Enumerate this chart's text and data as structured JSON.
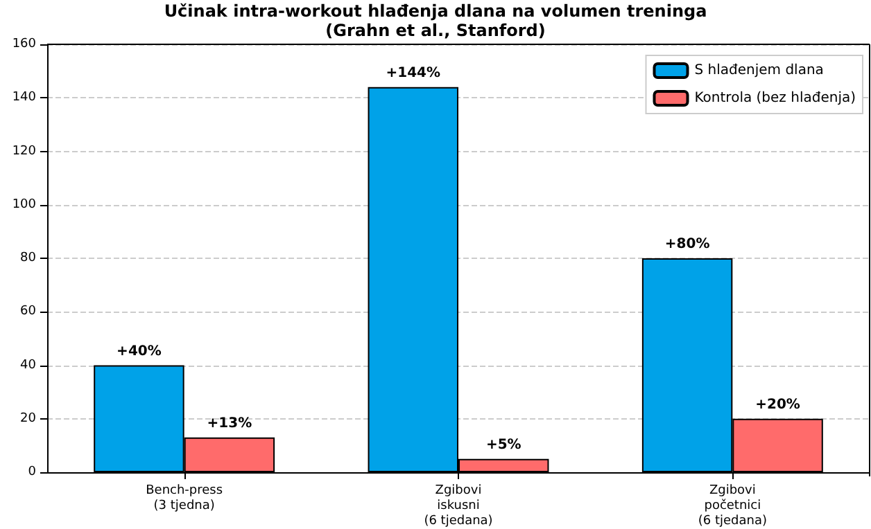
{
  "chart_data": {
    "type": "bar",
    "title": "Učinak intra-workout hlađenja dlana na volumen treninga\n(Grahn et al., Stanford)",
    "categories": [
      "Bench-press\n(3 tjedna)",
      "Zgibovi\niskusni\n(6 tjedana)",
      "Zgibovi\npočetnici\n(6 tjedana)"
    ],
    "series": [
      {
        "name": "S hlađenjem dlana",
        "color": "#00a2e8",
        "values": [
          40,
          144,
          80
        ],
        "value_labels": [
          "+40%",
          "+144%",
          "+80%"
        ]
      },
      {
        "name": "Kontrola (bez hlađenja)",
        "color": "#ff6b6b",
        "values": [
          13,
          5,
          20
        ],
        "value_labels": [
          "+13%",
          "+5%",
          "+20%"
        ]
      }
    ],
    "ylim": [
      0,
      160
    ],
    "yticks": [
      0,
      20,
      40,
      60,
      80,
      100,
      120,
      140,
      160
    ],
    "grid": "y",
    "legend": "top right"
  }
}
